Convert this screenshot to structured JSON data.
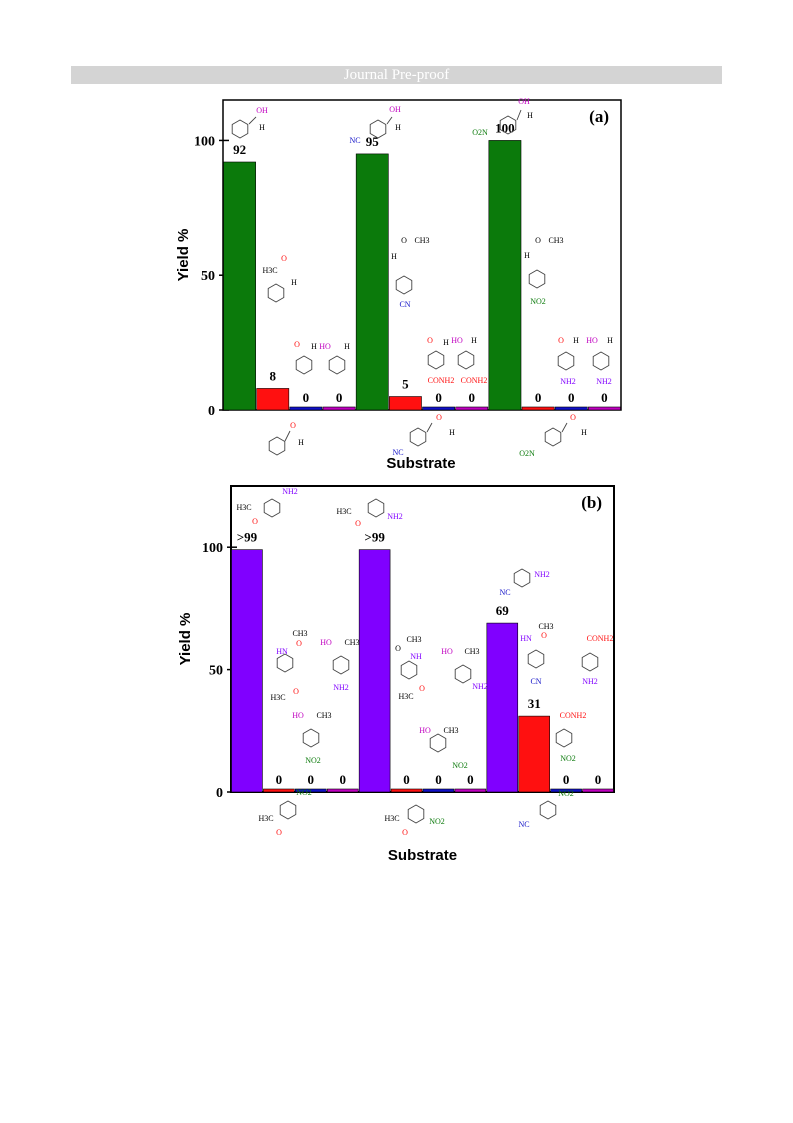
{
  "banner": "Journal Pre-proof",
  "colors": {
    "green": "#0b7a0b",
    "red": "#ff1010",
    "blue": "#1010c8",
    "magenta": "#c000c0",
    "purple": "#8000ff"
  },
  "chart_data": [
    {
      "type": "bar",
      "panel_label": "(a)",
      "xlabel": "Substrate",
      "ylabel": "Yield %",
      "ylim": [
        0,
        115
      ],
      "yticks": [
        0,
        50,
        100
      ],
      "series_colors": [
        "green",
        "red",
        "blue",
        "magenta"
      ],
      "groups": [
        {
          "values": [
            92,
            8,
            0,
            0
          ],
          "labels": [
            "92",
            "8",
            "0",
            "0"
          ]
        },
        {
          "values": [
            95,
            5,
            0,
            0
          ],
          "labels": [
            "95",
            "5",
            "0",
            "0"
          ]
        },
        {
          "values": [
            100,
            0,
            0,
            0
          ],
          "labels": [
            "100",
            "0",
            "0",
            "0"
          ]
        }
      ],
      "structure_labels": {
        "oh": "OH",
        "h": "H",
        "o": "O",
        "ch3": "CH3",
        "h3c": "H3C",
        "nc": "NC",
        "cn": "CN",
        "o2n": "O2N",
        "no2": "NO2",
        "conh2": "CONH2",
        "nh2": "NH2",
        "ho": "HO"
      }
    },
    {
      "type": "bar",
      "panel_label": "(b)",
      "xlabel": "Substrate",
      "ylabel": "Yield %",
      "ylim": [
        0,
        125
      ],
      "yticks": [
        0,
        50,
        100
      ],
      "series_colors": [
        "purple",
        "red",
        "blue",
        "magenta"
      ],
      "groups": [
        {
          "values": [
            99,
            0,
            0,
            0
          ],
          "labels": [
            ">99",
            "0",
            "0",
            "0"
          ]
        },
        {
          "values": [
            99,
            0,
            0,
            0
          ],
          "labels": [
            ">99",
            "0",
            "0",
            "0"
          ]
        },
        {
          "values": [
            69,
            31,
            0,
            0
          ],
          "labels": [
            "69",
            "31",
            "0",
            "0"
          ]
        }
      ],
      "structure_labels": {
        "nh2": "NH2",
        "h3c": "H3C",
        "o": "O",
        "ch3": "CH3",
        "hn": "HN",
        "ho": "HO",
        "no2": "NO2",
        "nh": "NH",
        "nc": "NC",
        "cn": "CN",
        "conh2": "CONH2"
      }
    }
  ]
}
